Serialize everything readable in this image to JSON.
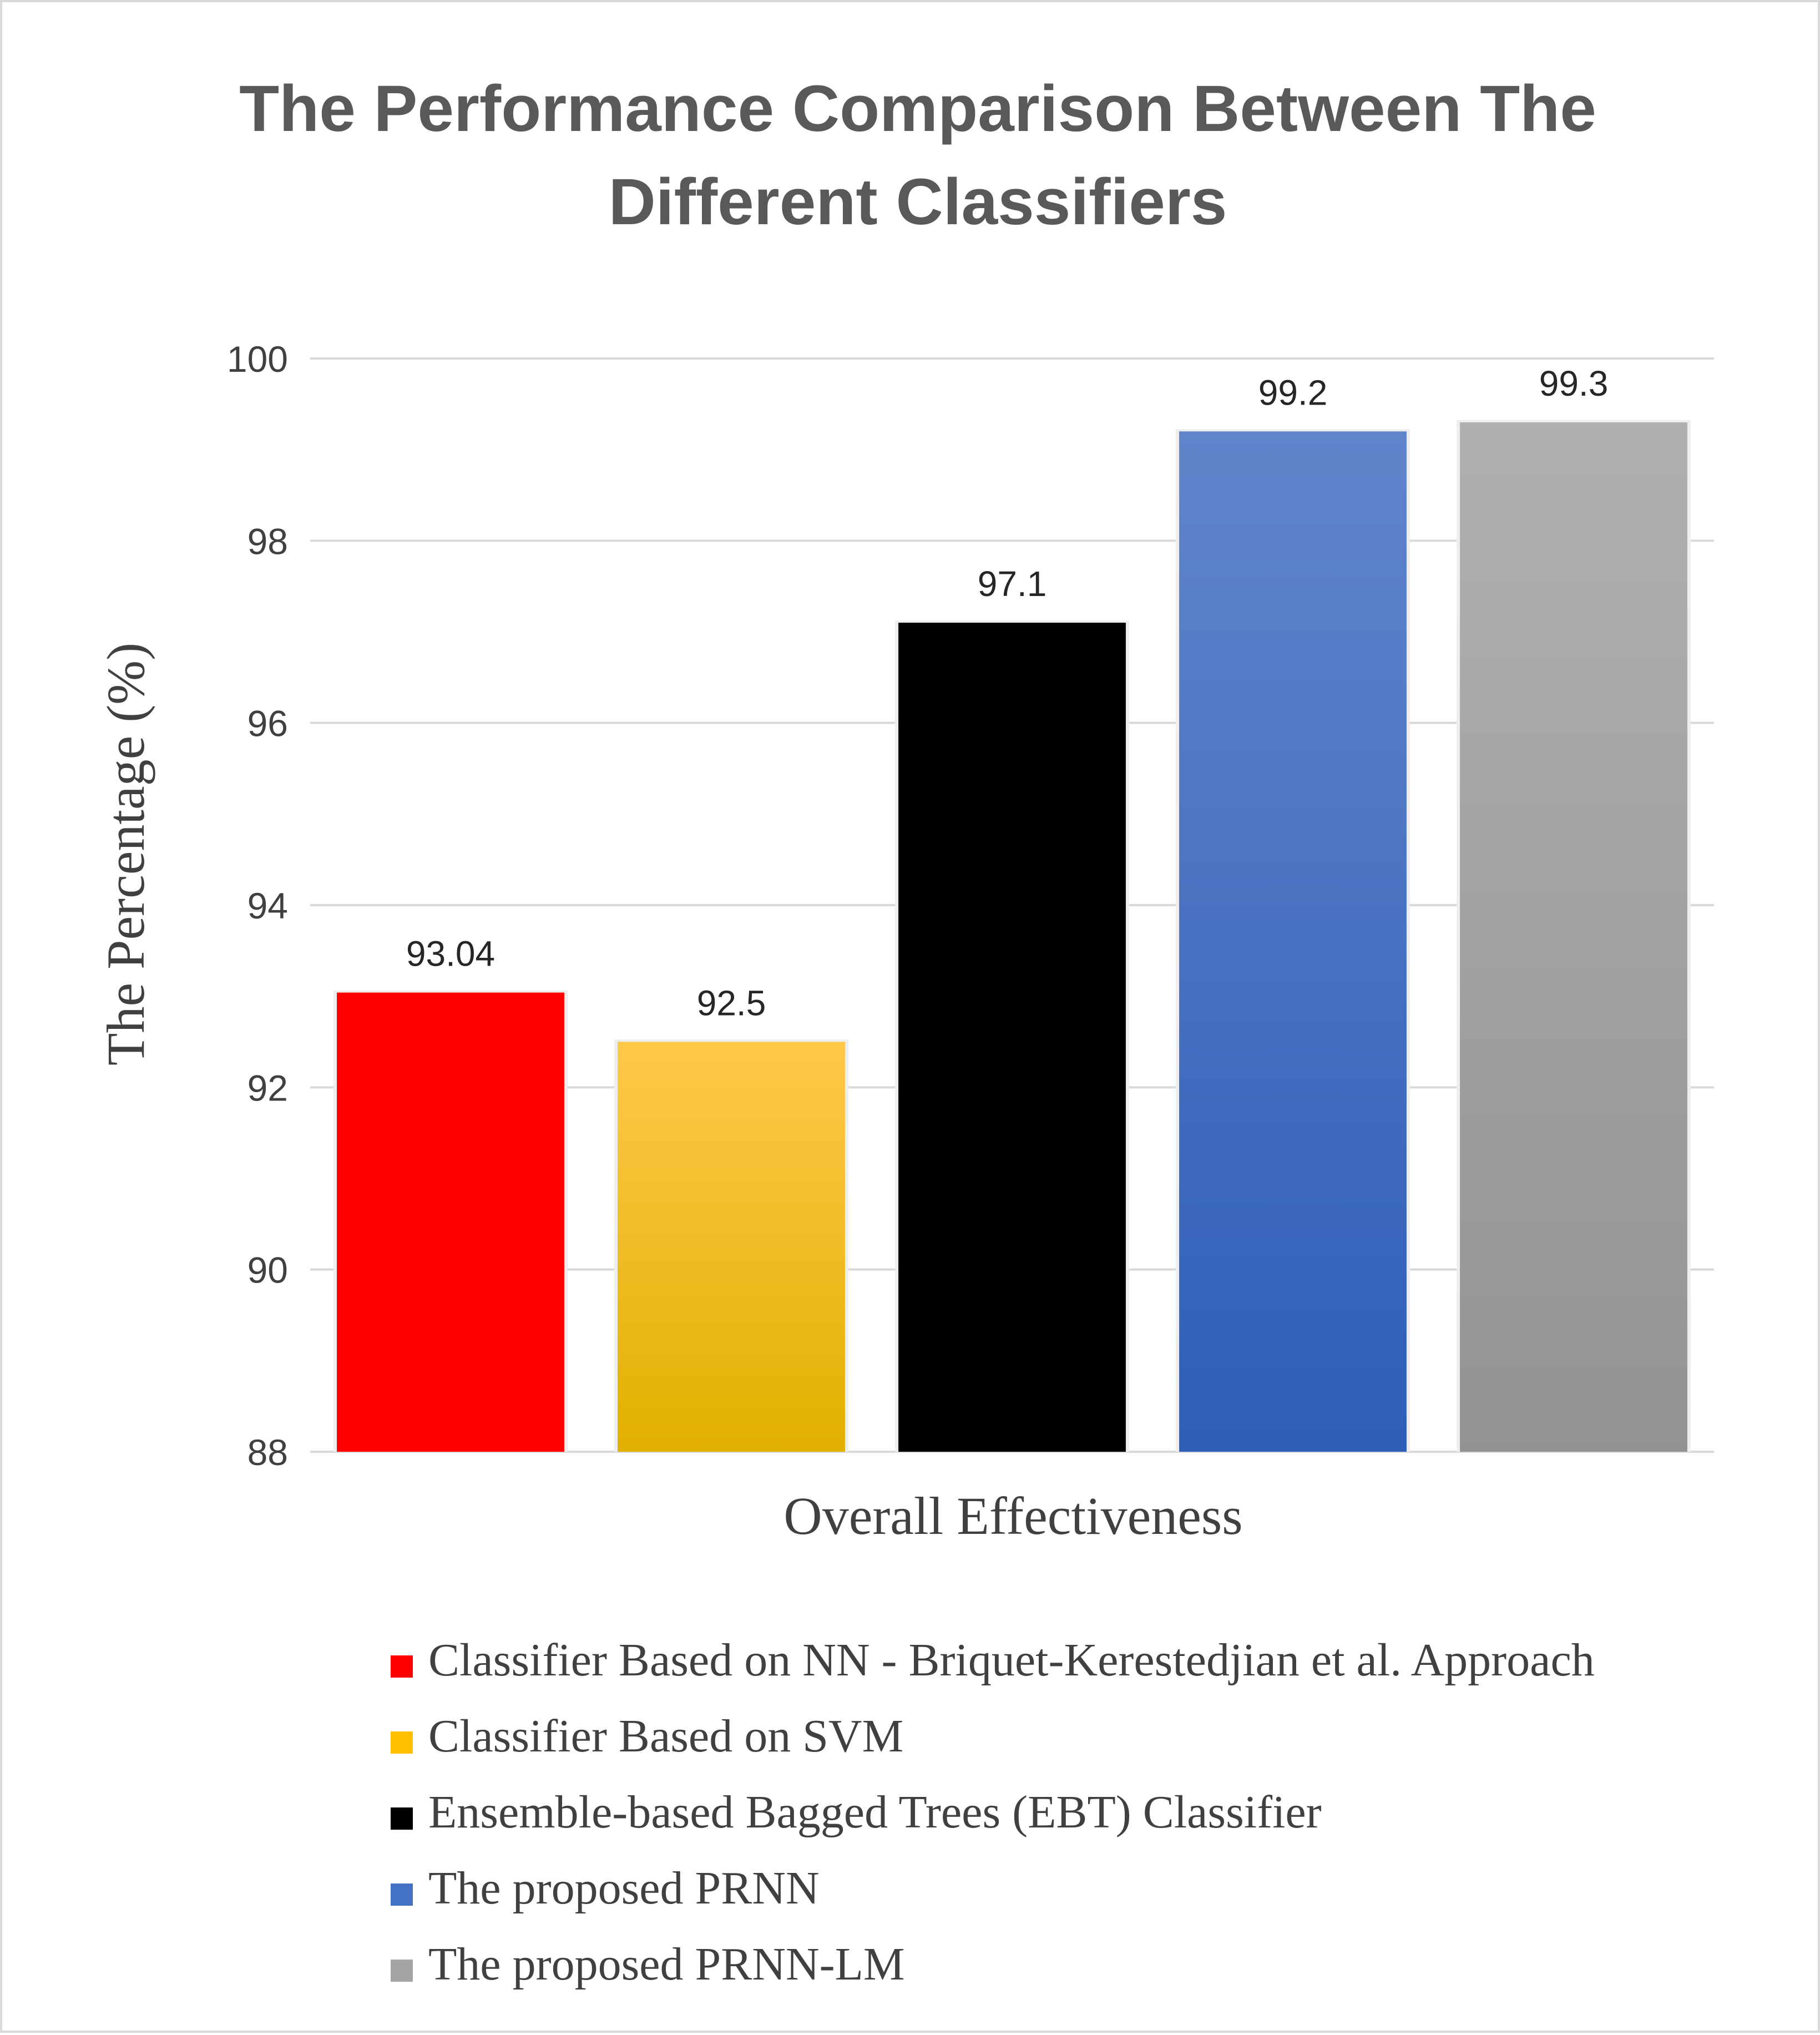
{
  "chart_data": {
    "type": "bar",
    "title_lines": [
      "The Performance Comparison Between The",
      "Different Classifiers"
    ],
    "xlabel": "Overall Effectiveness",
    "ylabel": "The Percentage (%)",
    "ylim": [
      88,
      100
    ],
    "yticks": [
      88,
      90,
      92,
      94,
      96,
      98,
      100
    ],
    "grid": true,
    "legend_position": "bottom",
    "series": [
      {
        "name": "Classifier Based on NN - Briquet-Kerestedjian et al. Approach",
        "value": 93.04,
        "value_label": "93.04",
        "color": "#ff0000",
        "color_light": "#ff0000",
        "color_dark": "#ff0000"
      },
      {
        "name": "Classifier Based on SVM",
        "value": 92.5,
        "value_label": "92.5",
        "color": "#ffc000",
        "color_light": "#ffc84a",
        "color_dark": "#e2b000"
      },
      {
        "name": "Ensemble-based Bagged Trees (EBT) Classifier",
        "value": 97.1,
        "value_label": "97.1",
        "color": "#000000",
        "color_light": "#000000",
        "color_dark": "#000000"
      },
      {
        "name": "The proposed PRNN",
        "value": 99.2,
        "value_label": "99.2",
        "color": "#4472c4",
        "color_light": "#6185cb",
        "color_dark": "#2e5eb8"
      },
      {
        "name": "The proposed PRNN-LM",
        "value": 99.3,
        "value_label": "99.3",
        "color": "#a5a5a5",
        "color_light": "#b0b0b0",
        "color_dark": "#939393"
      }
    ]
  }
}
